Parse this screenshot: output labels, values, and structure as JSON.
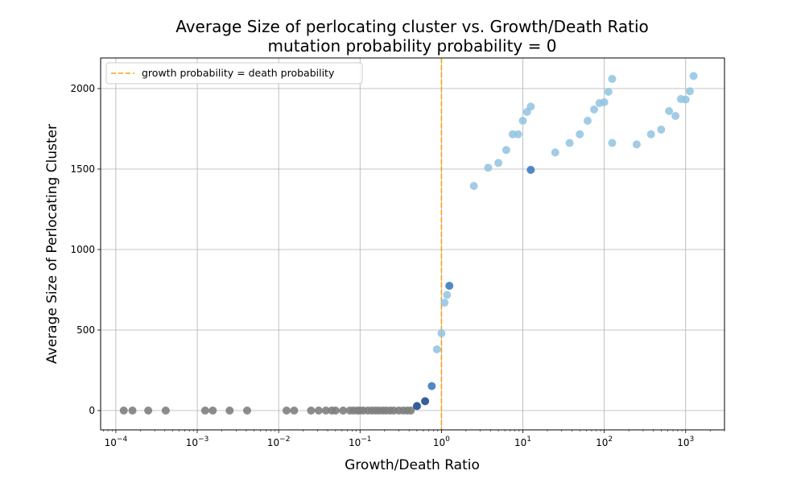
{
  "chart_data": {
    "type": "scatter",
    "title": "Average Size of perlocating cluster vs. Growth/Death Ratio",
    "subtitle": "mutation probability  probability = 0",
    "xlabel": "Growth/Death Ratio",
    "ylabel": "Average Size of Perlocating Cluster",
    "xscale": "log",
    "xlim": [
      6.5e-05,
      3000
    ],
    "ylim": [
      -120,
      2190
    ],
    "xticks": [
      {
        "value": 0.0001,
        "base": "10",
        "exp": "−4"
      },
      {
        "value": 0.001,
        "base": "10",
        "exp": "−3"
      },
      {
        "value": 0.01,
        "base": "10",
        "exp": "−2"
      },
      {
        "value": 0.1,
        "base": "10",
        "exp": "−1"
      },
      {
        "value": 1,
        "base": "10",
        "exp": "0"
      },
      {
        "value": 10,
        "base": "10",
        "exp": "1"
      },
      {
        "value": 100,
        "base": "10",
        "exp": "2"
      },
      {
        "value": 1000,
        "base": "10",
        "exp": "3"
      }
    ],
    "yticks": [
      {
        "value": 0,
        "label": "0"
      },
      {
        "value": 500,
        "label": "500"
      },
      {
        "value": 1000,
        "label": "1000"
      },
      {
        "value": 1500,
        "label": "1500"
      },
      {
        "value": 2000,
        "label": "2000"
      }
    ],
    "grid": true,
    "legend": {
      "position": "top-left",
      "entries": [
        {
          "label": "growth probability = death probability",
          "style": "dashed",
          "color": "#ff9f0e"
        }
      ]
    },
    "reference_line": {
      "x": 1,
      "color": "#ff9f0e",
      "style": "dashed"
    },
    "colors": {
      "zero": "#808080",
      "dark": "#1f4e8f",
      "mid": "#3c7cbf",
      "light": "#92c3e0"
    },
    "points": [
      {
        "x": 0.000125,
        "y": 0,
        "c": "zero"
      },
      {
        "x": 0.00016,
        "y": 0,
        "c": "zero"
      },
      {
        "x": 0.00025,
        "y": 0,
        "c": "zero"
      },
      {
        "x": 0.00041,
        "y": 0,
        "c": "zero"
      },
      {
        "x": 0.00125,
        "y": 0,
        "c": "zero"
      },
      {
        "x": 0.00155,
        "y": 0,
        "c": "zero"
      },
      {
        "x": 0.0025,
        "y": 0,
        "c": "zero"
      },
      {
        "x": 0.0041,
        "y": 0,
        "c": "zero"
      },
      {
        "x": 0.0125,
        "y": 0,
        "c": "zero"
      },
      {
        "x": 0.0155,
        "y": 0,
        "c": "zero"
      },
      {
        "x": 0.025,
        "y": 0,
        "c": "zero"
      },
      {
        "x": 0.031,
        "y": 0,
        "c": "zero"
      },
      {
        "x": 0.038,
        "y": 0,
        "c": "zero"
      },
      {
        "x": 0.045,
        "y": 0,
        "c": "zero"
      },
      {
        "x": 0.05,
        "y": 0,
        "c": "zero"
      },
      {
        "x": 0.062,
        "y": 0,
        "c": "zero"
      },
      {
        "x": 0.075,
        "y": 0,
        "c": "zero"
      },
      {
        "x": 0.083,
        "y": 0,
        "c": "zero"
      },
      {
        "x": 0.093,
        "y": 0,
        "c": "zero"
      },
      {
        "x": 0.1,
        "y": 0,
        "c": "zero"
      },
      {
        "x": 0.11,
        "y": 0,
        "c": "zero"
      },
      {
        "x": 0.125,
        "y": 0,
        "c": "zero"
      },
      {
        "x": 0.14,
        "y": 0,
        "c": "zero"
      },
      {
        "x": 0.155,
        "y": 0,
        "c": "zero"
      },
      {
        "x": 0.17,
        "y": 0,
        "c": "zero"
      },
      {
        "x": 0.19,
        "y": 0,
        "c": "zero"
      },
      {
        "x": 0.21,
        "y": 0,
        "c": "zero"
      },
      {
        "x": 0.235,
        "y": 0,
        "c": "zero"
      },
      {
        "x": 0.26,
        "y": 0,
        "c": "zero"
      },
      {
        "x": 0.3,
        "y": 0,
        "c": "zero"
      },
      {
        "x": 0.34,
        "y": 0,
        "c": "zero"
      },
      {
        "x": 0.38,
        "y": 0,
        "c": "zero"
      },
      {
        "x": 0.42,
        "y": 0,
        "c": "zero"
      },
      {
        "x": 0.5,
        "y": 28,
        "c": "dark"
      },
      {
        "x": 0.63,
        "y": 58,
        "c": "dark"
      },
      {
        "x": 0.76,
        "y": 152,
        "c": "mid"
      },
      {
        "x": 0.88,
        "y": 380,
        "c": "light"
      },
      {
        "x": 1.0,
        "y": 480,
        "c": "light"
      },
      {
        "x": 1.09,
        "y": 670,
        "c": "light"
      },
      {
        "x": 1.17,
        "y": 718,
        "c": "light"
      },
      {
        "x": 1.25,
        "y": 775,
        "c": "mid"
      },
      {
        "x": 2.5,
        "y": 1395,
        "c": "light"
      },
      {
        "x": 3.75,
        "y": 1508,
        "c": "light"
      },
      {
        "x": 5.0,
        "y": 1538,
        "c": "light"
      },
      {
        "x": 6.25,
        "y": 1618,
        "c": "light"
      },
      {
        "x": 7.5,
        "y": 1716,
        "c": "light"
      },
      {
        "x": 8.75,
        "y": 1716,
        "c": "light"
      },
      {
        "x": 10.0,
        "y": 1800,
        "c": "light"
      },
      {
        "x": 11.25,
        "y": 1855,
        "c": "light"
      },
      {
        "x": 12.5,
        "y": 1888,
        "c": "light"
      },
      {
        "x": 12.5,
        "y": 1495,
        "c": "mid"
      },
      {
        "x": 25.0,
        "y": 1603,
        "c": "light"
      },
      {
        "x": 37.5,
        "y": 1662,
        "c": "light"
      },
      {
        "x": 50.0,
        "y": 1716,
        "c": "light"
      },
      {
        "x": 62.5,
        "y": 1800,
        "c": "light"
      },
      {
        "x": 75.0,
        "y": 1870,
        "c": "light"
      },
      {
        "x": 87.5,
        "y": 1910,
        "c": "light"
      },
      {
        "x": 100.0,
        "y": 1915,
        "c": "light"
      },
      {
        "x": 112.5,
        "y": 1980,
        "c": "light"
      },
      {
        "x": 125.0,
        "y": 2060,
        "c": "light"
      },
      {
        "x": 125.0,
        "y": 1662,
        "c": "light"
      },
      {
        "x": 250.0,
        "y": 1653,
        "c": "light"
      },
      {
        "x": 375.0,
        "y": 1716,
        "c": "light"
      },
      {
        "x": 500.0,
        "y": 1745,
        "c": "light"
      },
      {
        "x": 625.0,
        "y": 1860,
        "c": "light"
      },
      {
        "x": 750.0,
        "y": 1830,
        "c": "light"
      },
      {
        "x": 875.0,
        "y": 1935,
        "c": "light"
      },
      {
        "x": 1000.0,
        "y": 1932,
        "c": "light"
      },
      {
        "x": 1125.0,
        "y": 1983,
        "c": "light"
      },
      {
        "x": 1250.0,
        "y": 2078,
        "c": "light"
      }
    ]
  }
}
